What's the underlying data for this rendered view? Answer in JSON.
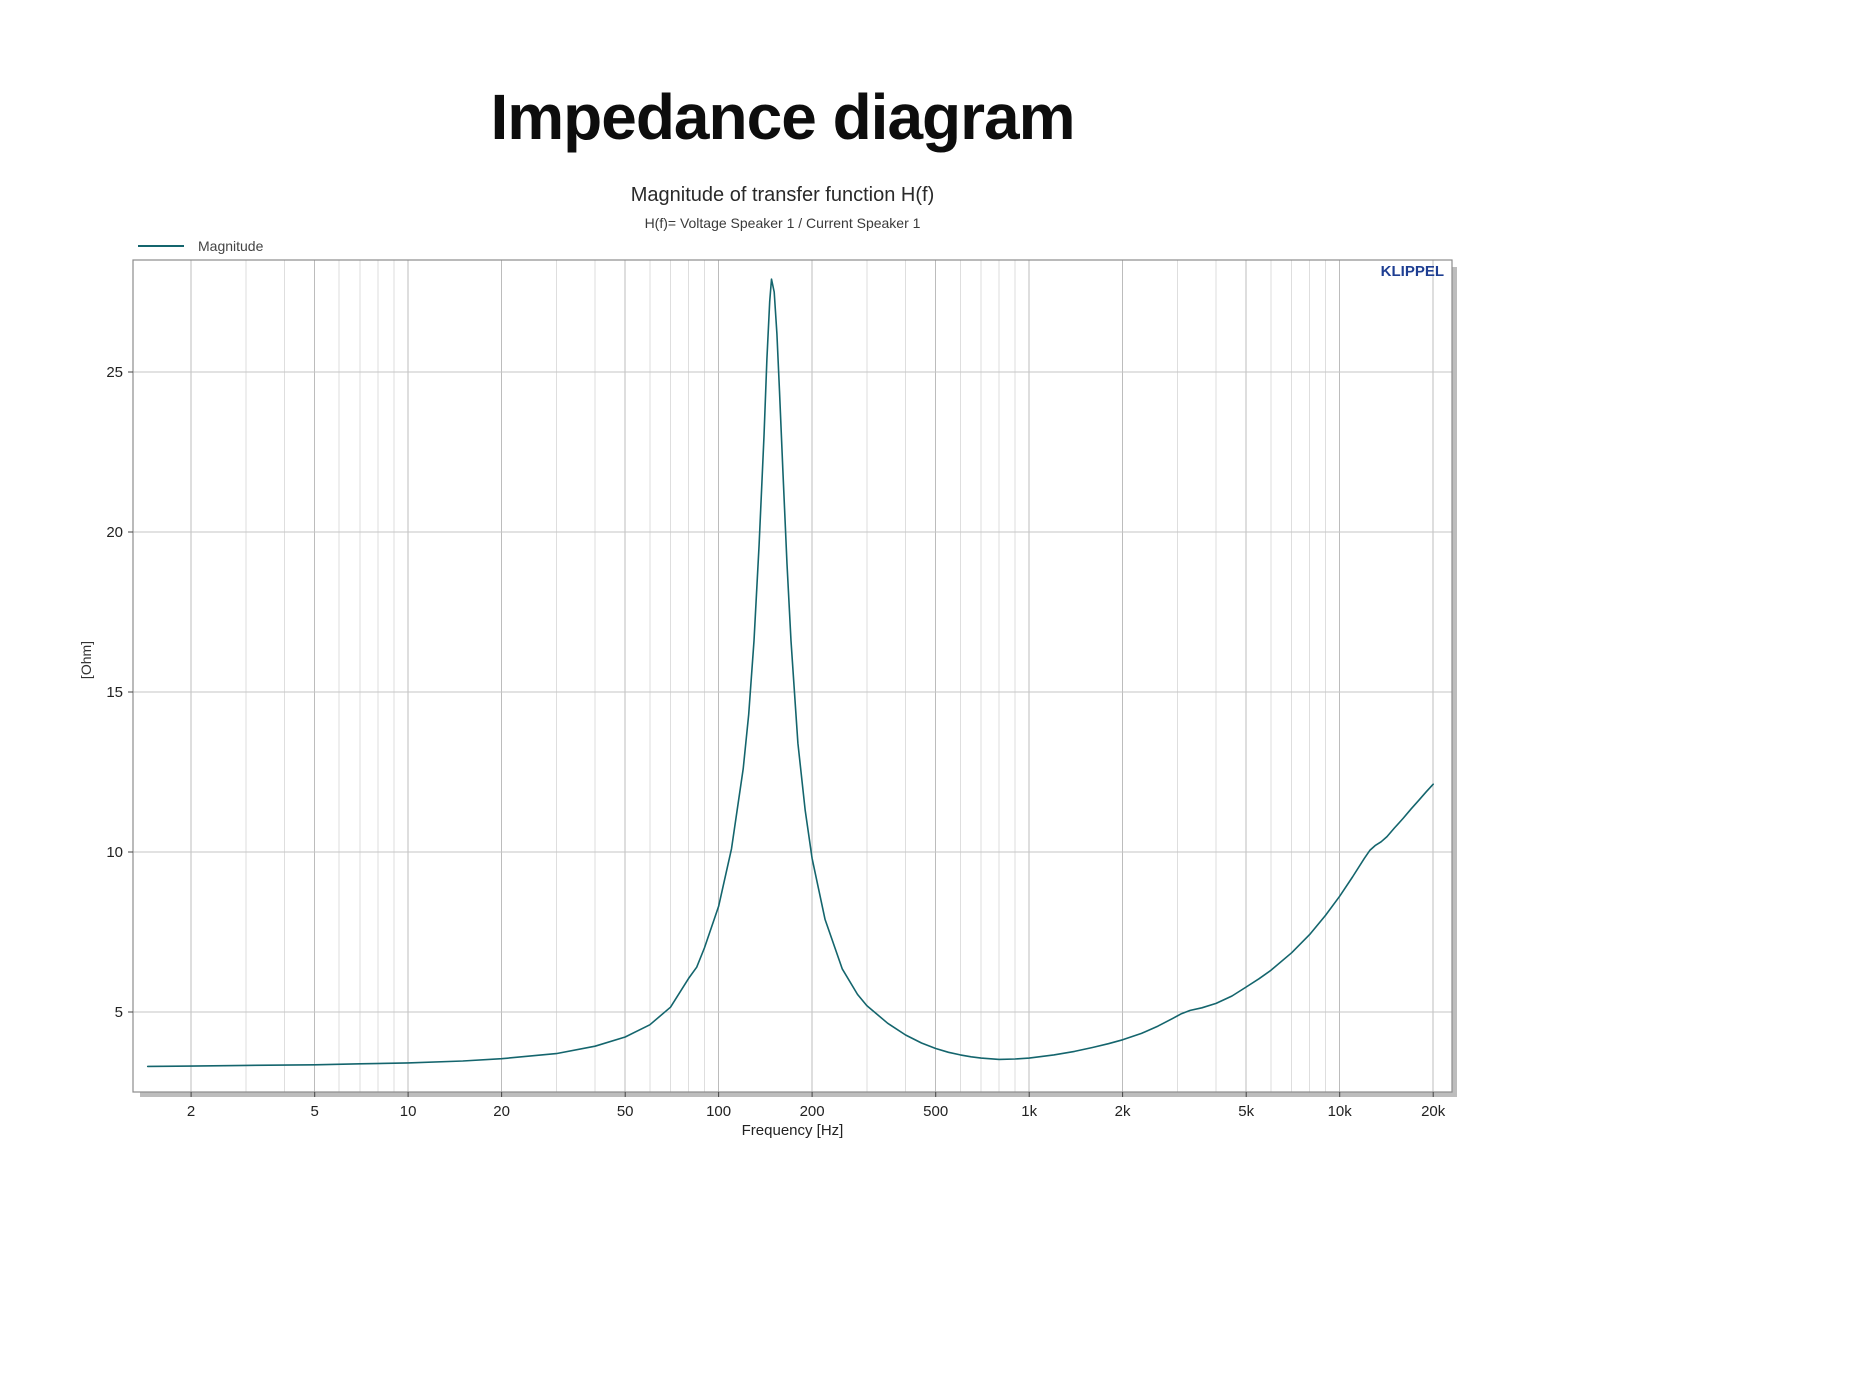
{
  "page": {
    "title": "Impedance diagram"
  },
  "chart": {
    "title": "Magnitude of transfer function H(f)",
    "subtitle": "H(f)= Voltage Speaker 1 / Current Speaker 1",
    "legend_label": "Magnitude",
    "brand": "KLIPPEL",
    "xlabel": "Frequency [Hz]",
    "ylabel": "[Ohm]",
    "colors": {
      "line": "#14656d",
      "brand": "#1e3e92",
      "grid_minor": "#dedede",
      "grid_major": "#bcbcbc",
      "grid_h": "#c6c6c6",
      "border": "#8c8c8c",
      "shadow": "#bdbdbd",
      "tick": "#444444",
      "tick_label": "#222222"
    }
  },
  "chart_data": {
    "type": "line",
    "title": "Magnitude of transfer function H(f)",
    "subtitle": "H(f)= Voltage Speaker 1 / Current Speaker 1",
    "xlabel": "Frequency [Hz]",
    "ylabel": "[Ohm]",
    "x_scale": "log",
    "xlim": [
      1.3,
      23000
    ],
    "ylim": [
      2.5,
      28.5
    ],
    "grid": true,
    "legend": {
      "position": "top-left-above-plot",
      "entries": [
        "Magnitude"
      ]
    },
    "annotations": [
      "KLIPPEL"
    ],
    "y_ticks": [
      5,
      10,
      15,
      20,
      25
    ],
    "x_ticks": [
      {
        "value": 2,
        "label": "2"
      },
      {
        "value": 5,
        "label": "5"
      },
      {
        "value": 10,
        "label": "10"
      },
      {
        "value": 20,
        "label": "20"
      },
      {
        "value": 50,
        "label": "50"
      },
      {
        "value": 100,
        "label": "100"
      },
      {
        "value": 200,
        "label": "200"
      },
      {
        "value": 500,
        "label": "500"
      },
      {
        "value": 1000,
        "label": "1k"
      },
      {
        "value": 2000,
        "label": "2k"
      },
      {
        "value": 5000,
        "label": "5k"
      },
      {
        "value": 10000,
        "label": "10k"
      },
      {
        "value": 20000,
        "label": "20k"
      }
    ],
    "series": [
      {
        "name": "Magnitude",
        "color": "#14656d",
        "resonance_peak": {
          "frequency_hz": 148,
          "ohm": 27.9
        },
        "points": [
          [
            1.45,
            3.3
          ],
          [
            2,
            3.31
          ],
          [
            3,
            3.33
          ],
          [
            4,
            3.34
          ],
          [
            5,
            3.35
          ],
          [
            7,
            3.38
          ],
          [
            10,
            3.41
          ],
          [
            15,
            3.47
          ],
          [
            20,
            3.54
          ],
          [
            30,
            3.7
          ],
          [
            40,
            3.93
          ],
          [
            50,
            4.22
          ],
          [
            60,
            4.6
          ],
          [
            70,
            5.15
          ],
          [
            80,
            6.05
          ],
          [
            85,
            6.4
          ],
          [
            90,
            7.0
          ],
          [
            100,
            8.3
          ],
          [
            110,
            10.1
          ],
          [
            120,
            12.6
          ],
          [
            125,
            14.3
          ],
          [
            130,
            16.6
          ],
          [
            135,
            19.6
          ],
          [
            140,
            23.0
          ],
          [
            143,
            25.4
          ],
          [
            146,
            27.2
          ],
          [
            148,
            27.9
          ],
          [
            151,
            27.5
          ],
          [
            154,
            26.2
          ],
          [
            157,
            24.4
          ],
          [
            161,
            21.9
          ],
          [
            166,
            19.0
          ],
          [
            171,
            16.6
          ],
          [
            180,
            13.4
          ],
          [
            190,
            11.3
          ],
          [
            200,
            9.8
          ],
          [
            220,
            7.9
          ],
          [
            250,
            6.35
          ],
          [
            280,
            5.55
          ],
          [
            300,
            5.2
          ],
          [
            350,
            4.65
          ],
          [
            400,
            4.28
          ],
          [
            450,
            4.03
          ],
          [
            500,
            3.86
          ],
          [
            550,
            3.74
          ],
          [
            600,
            3.66
          ],
          [
            650,
            3.6
          ],
          [
            700,
            3.56
          ],
          [
            800,
            3.52
          ],
          [
            900,
            3.53
          ],
          [
            1000,
            3.56
          ],
          [
            1200,
            3.66
          ],
          [
            1400,
            3.77
          ],
          [
            1600,
            3.89
          ],
          [
            1800,
            4.01
          ],
          [
            2000,
            4.13
          ],
          [
            2300,
            4.33
          ],
          [
            2600,
            4.56
          ],
          [
            2900,
            4.8
          ],
          [
            3100,
            4.95
          ],
          [
            3300,
            5.05
          ],
          [
            3600,
            5.13
          ],
          [
            4000,
            5.27
          ],
          [
            4500,
            5.5
          ],
          [
            5000,
            5.78
          ],
          [
            5500,
            6.04
          ],
          [
            6000,
            6.3
          ],
          [
            7000,
            6.85
          ],
          [
            8000,
            7.42
          ],
          [
            9000,
            8.02
          ],
          [
            10000,
            8.62
          ],
          [
            11000,
            9.22
          ],
          [
            12000,
            9.8
          ],
          [
            12500,
            10.05
          ],
          [
            13000,
            10.2
          ],
          [
            13600,
            10.32
          ],
          [
            14200,
            10.48
          ],
          [
            15000,
            10.75
          ],
          [
            16000,
            11.05
          ],
          [
            17000,
            11.35
          ],
          [
            18000,
            11.62
          ],
          [
            19000,
            11.88
          ],
          [
            20000,
            12.12
          ]
        ]
      }
    ]
  }
}
